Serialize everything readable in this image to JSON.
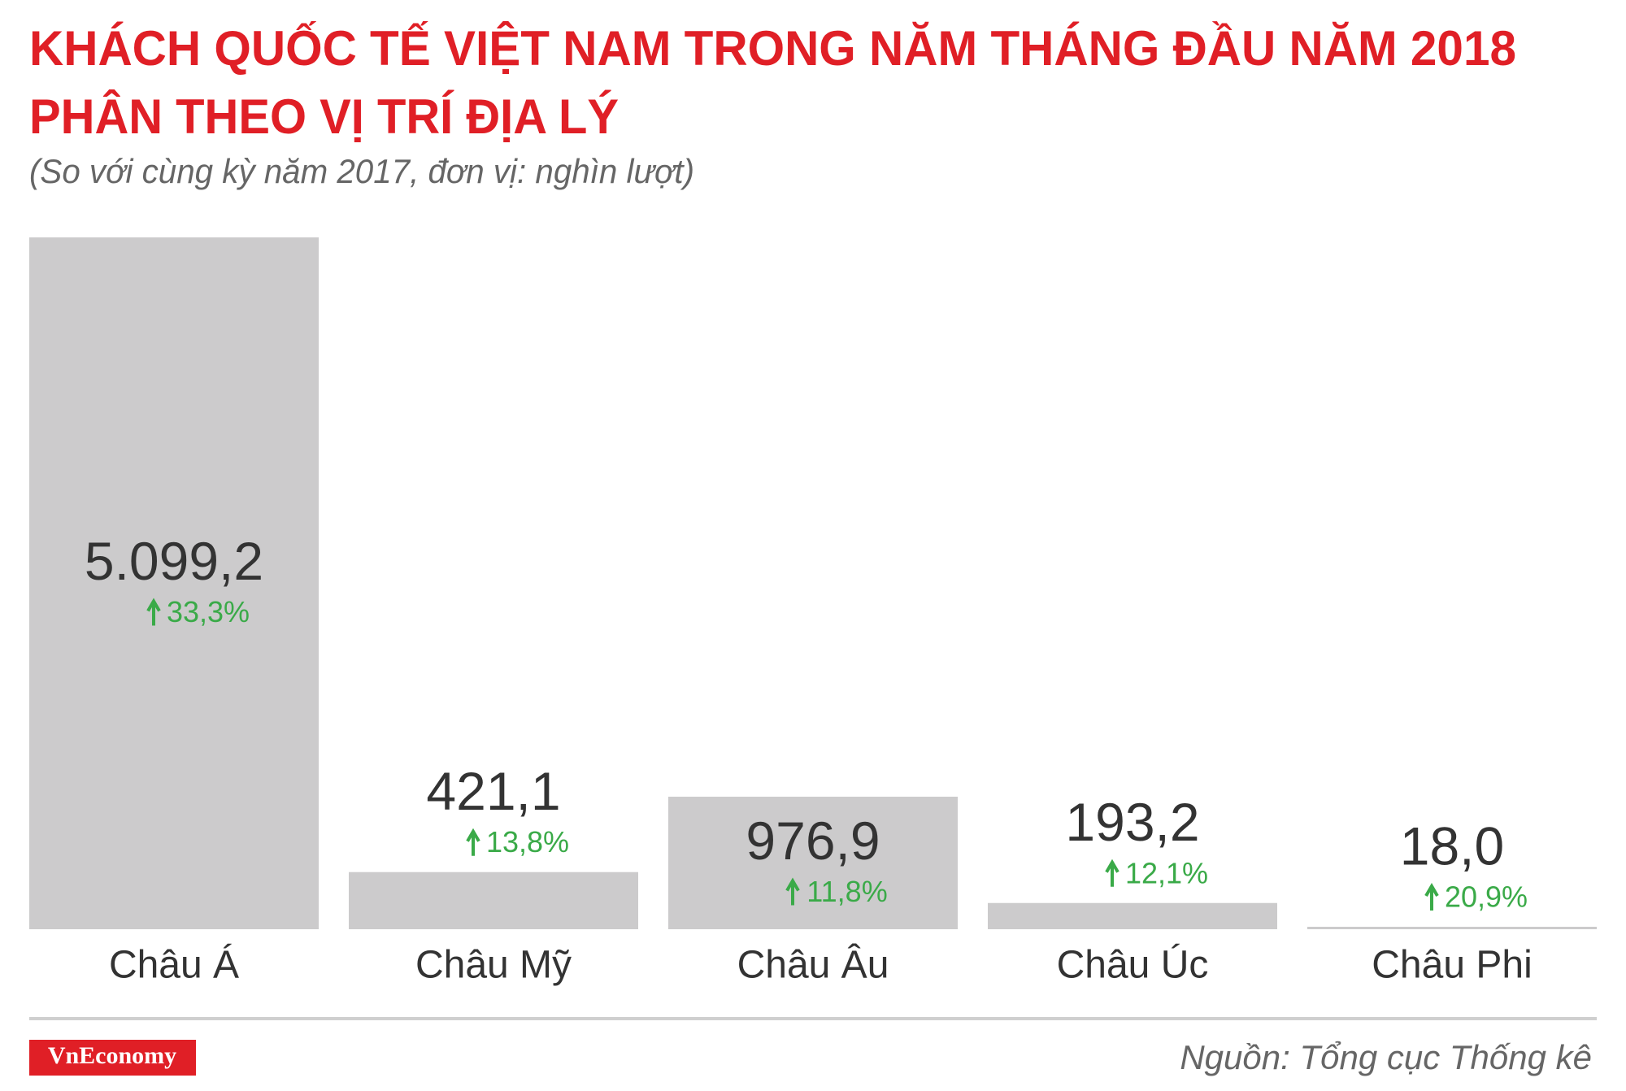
{
  "chart_data": {
    "type": "bar",
    "title": [
      "KHÁCH QUỐC TẾ VIỆT NAM TRONG NĂM THÁNG ĐẦU NĂM 2018",
      "PHÂN THEO VỊ TRÍ ĐỊA LÝ"
    ],
    "subtitle": "(So với cùng kỳ năm 2017, đơn vị: nghìn lượt)",
    "categories": [
      "Châu Á",
      "Châu Mỹ",
      "Châu Âu",
      "Châu Úc",
      "Châu Phi"
    ],
    "values": [
      5099.2,
      421.1,
      976.9,
      193.2,
      18.0
    ],
    "value_labels": [
      "5.099,2",
      "421,1",
      "976,9",
      "193,2",
      "18,0"
    ],
    "changes": [
      33.3,
      13.8,
      11.8,
      12.1,
      20.9
    ],
    "change_labels": [
      "33,3%",
      "13,8%",
      "11,8%",
      "12,1%",
      "20,9%"
    ],
    "color": "#cccbcc",
    "change_color": "#3aaa48",
    "source": "Nguồn: Tổng cục Thống kê",
    "logo": "VnEconomy"
  }
}
